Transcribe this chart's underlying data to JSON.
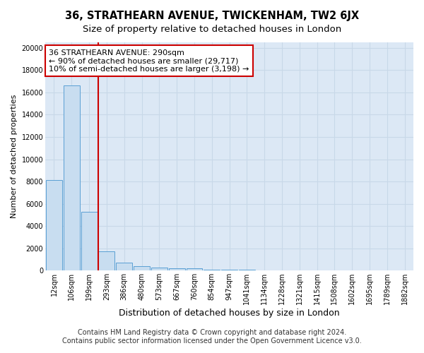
{
  "title1": "36, STRATHEARN AVENUE, TWICKENHAM, TW2 6JX",
  "title2": "Size of property relative to detached houses in London",
  "xlabel": "Distribution of detached houses by size in London",
  "ylabel": "Number of detached properties",
  "bar_labels": [
    "12sqm",
    "106sqm",
    "199sqm",
    "293sqm",
    "386sqm",
    "480sqm",
    "573sqm",
    "667sqm",
    "760sqm",
    "854sqm",
    "947sqm",
    "1041sqm",
    "1134sqm",
    "1228sqm",
    "1321sqm",
    "1415sqm",
    "1508sqm",
    "1602sqm",
    "1695sqm",
    "1789sqm",
    "1882sqm"
  ],
  "bar_values": [
    8100,
    16600,
    5300,
    1750,
    700,
    380,
    280,
    200,
    170,
    100,
    75,
    55,
    40,
    30,
    22,
    16,
    12,
    9,
    7,
    5,
    4
  ],
  "bar_color": "#c8ddf0",
  "bar_edge_color": "#5a9fd4",
  "bar_edge_width": 0.7,
  "grid_color": "#c8d8e8",
  "background_color": "#ffffff",
  "axes_bg_color": "#dce8f5",
  "vline_x_idx": 2,
  "vline_color": "#cc0000",
  "vline_linewidth": 1.5,
  "annotation_text": "36 STRATHEARN AVENUE: 290sqm\n← 90% of detached houses are smaller (29,717)\n10% of semi-detached houses are larger (3,198) →",
  "annotation_box_color": "#cc0000",
  "ylim": [
    0,
    20500
  ],
  "yticks": [
    0,
    2000,
    4000,
    6000,
    8000,
    10000,
    12000,
    14000,
    16000,
    18000,
    20000
  ],
  "footnote1": "Contains HM Land Registry data © Crown copyright and database right 2024.",
  "footnote2": "Contains public sector information licensed under the Open Government Licence v3.0.",
  "title1_fontsize": 10.5,
  "title2_fontsize": 9.5,
  "xlabel_fontsize": 9,
  "ylabel_fontsize": 8,
  "tick_fontsize": 7,
  "annot_fontsize": 8,
  "footnote_fontsize": 7
}
